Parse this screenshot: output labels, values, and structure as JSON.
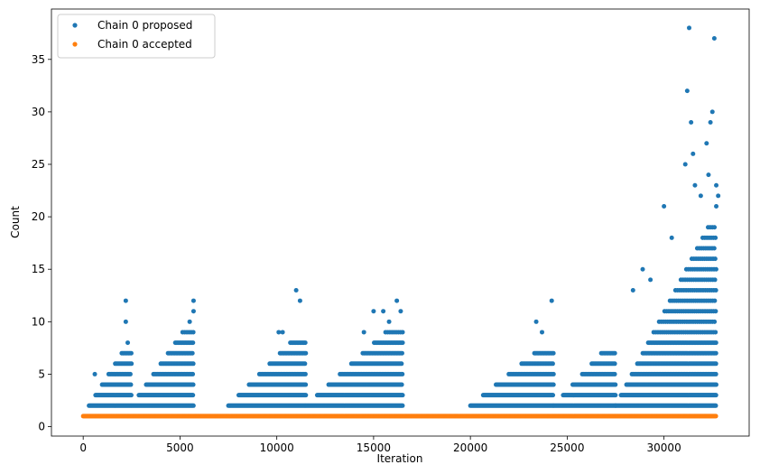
{
  "chart_data": {
    "type": "scatter",
    "title": "",
    "xlabel": "Iteration",
    "ylabel": "Count",
    "xlim": [
      -1640,
      34400
    ],
    "ylim": [
      -0.9,
      39.8
    ],
    "x_ticks": [
      0,
      5000,
      10000,
      15000,
      20000,
      25000,
      30000
    ],
    "y_ticks": [
      0,
      5,
      10,
      15,
      20,
      25,
      30,
      35
    ],
    "grid": false,
    "legend": "top-left",
    "series": [
      {
        "name": "Chain 0 proposed",
        "color": "#1f77b4",
        "description_of_visible_extent": "dense dots at counts 2-7 across iterations 500-5700, 7500-16500, 20000-32700; rises to higher counts near the end",
        "clusters": [
          {
            "x_start": 300,
            "x_end": 2500,
            "counts": [
              2,
              3,
              4,
              5,
              6,
              7
            ]
          },
          {
            "x_start": 2500,
            "x_end": 5700,
            "counts": [
              2,
              3,
              4,
              5,
              6,
              7,
              8,
              9
            ]
          },
          {
            "x_start": 7500,
            "x_end": 11500,
            "counts": [
              2,
              3,
              4,
              5,
              6,
              7,
              8
            ]
          },
          {
            "x_start": 11500,
            "x_end": 16500,
            "counts": [
              2,
              3,
              4,
              5,
              6,
              7,
              8,
              9
            ]
          },
          {
            "x_start": 20000,
            "x_end": 24300,
            "counts": [
              2,
              3,
              4,
              5,
              6,
              7
            ]
          },
          {
            "x_start": 24300,
            "x_end": 27500,
            "counts": [
              2,
              3,
              4,
              5,
              6,
              7
            ]
          },
          {
            "x_start": 27500,
            "x_end": 32700,
            "counts": [
              2,
              3,
              4,
              5,
              6,
              7,
              8,
              9,
              10,
              11,
              12,
              13,
              14,
              15,
              16,
              17,
              18,
              19
            ]
          }
        ],
        "outliers": [
          {
            "x": 600,
            "y": 5
          },
          {
            "x": 2200,
            "y": 12
          },
          {
            "x": 2200,
            "y": 10
          },
          {
            "x": 2300,
            "y": 8
          },
          {
            "x": 5700,
            "y": 12
          },
          {
            "x": 5700,
            "y": 11
          },
          {
            "x": 5500,
            "y": 10
          },
          {
            "x": 10100,
            "y": 9
          },
          {
            "x": 10300,
            "y": 9
          },
          {
            "x": 11000,
            "y": 13
          },
          {
            "x": 11200,
            "y": 12
          },
          {
            "x": 14500,
            "y": 9
          },
          {
            "x": 15000,
            "y": 11
          },
          {
            "x": 15500,
            "y": 11
          },
          {
            "x": 15800,
            "y": 10
          },
          {
            "x": 16200,
            "y": 12
          },
          {
            "x": 16400,
            "y": 11
          },
          {
            "x": 23400,
            "y": 10
          },
          {
            "x": 23700,
            "y": 9
          },
          {
            "x": 24200,
            "y": 12
          },
          {
            "x": 28400,
            "y": 13
          },
          {
            "x": 28900,
            "y": 15
          },
          {
            "x": 29300,
            "y": 14
          },
          {
            "x": 30000,
            "y": 21
          },
          {
            "x": 30400,
            "y": 18
          },
          {
            "x": 31100,
            "y": 25
          },
          {
            "x": 31200,
            "y": 32
          },
          {
            "x": 31300,
            "y": 38
          },
          {
            "x": 31400,
            "y": 29
          },
          {
            "x": 31500,
            "y": 26
          },
          {
            "x": 31600,
            "y": 23
          },
          {
            "x": 31900,
            "y": 22
          },
          {
            "x": 32200,
            "y": 27
          },
          {
            "x": 32300,
            "y": 24
          },
          {
            "x": 32400,
            "y": 29
          },
          {
            "x": 32500,
            "y": 30
          },
          {
            "x": 32600,
            "y": 37
          },
          {
            "x": 32700,
            "y": 23
          },
          {
            "x": 32800,
            "y": 22
          },
          {
            "x": 32700,
            "y": 21
          }
        ]
      },
      {
        "name": "Chain 0 accepted",
        "color": "#ff7f0e",
        "description_of_visible_extent": "continuous band of dots at count 1 from iteration 0 to 32700",
        "x_start": 0,
        "x_end": 32700,
        "y": 1
      }
    ]
  }
}
